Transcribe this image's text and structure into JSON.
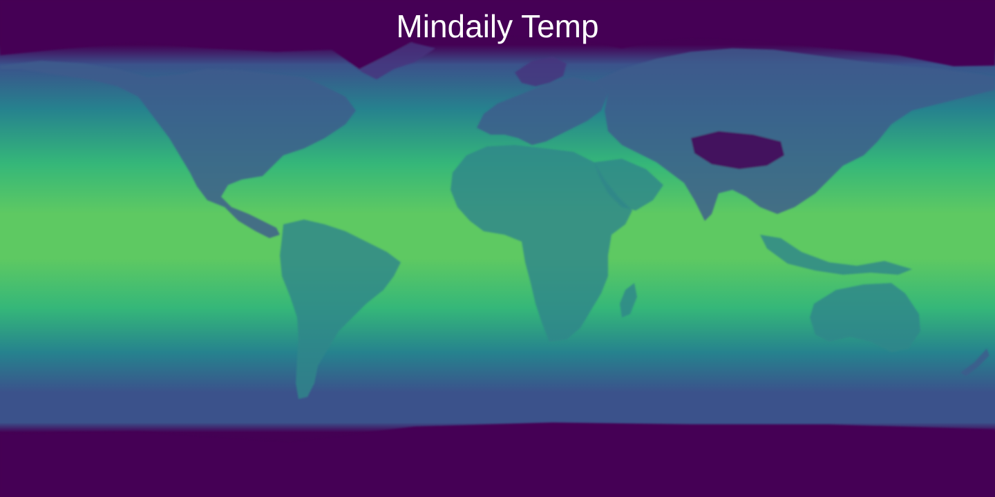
{
  "title": "Mindaily Temp",
  "colormap": {
    "name": "viridis",
    "stops": [
      "#440154",
      "#3b528b",
      "#21918c",
      "#5ec962",
      "#fde725"
    ],
    "ocean_band_colors": {
      "polar": "#440154",
      "high_latitude": "#3b528b",
      "mid_latitude": "#26828e",
      "subtropical": "#35b779",
      "equatorial": "#5ec962"
    },
    "land_tint_colors": {
      "tropical_land": "#31868a",
      "temperate_land": "#3e5c8c",
      "cold_land": "#46337e",
      "high_mountains": "#440154"
    }
  },
  "projection": "equirectangular"
}
